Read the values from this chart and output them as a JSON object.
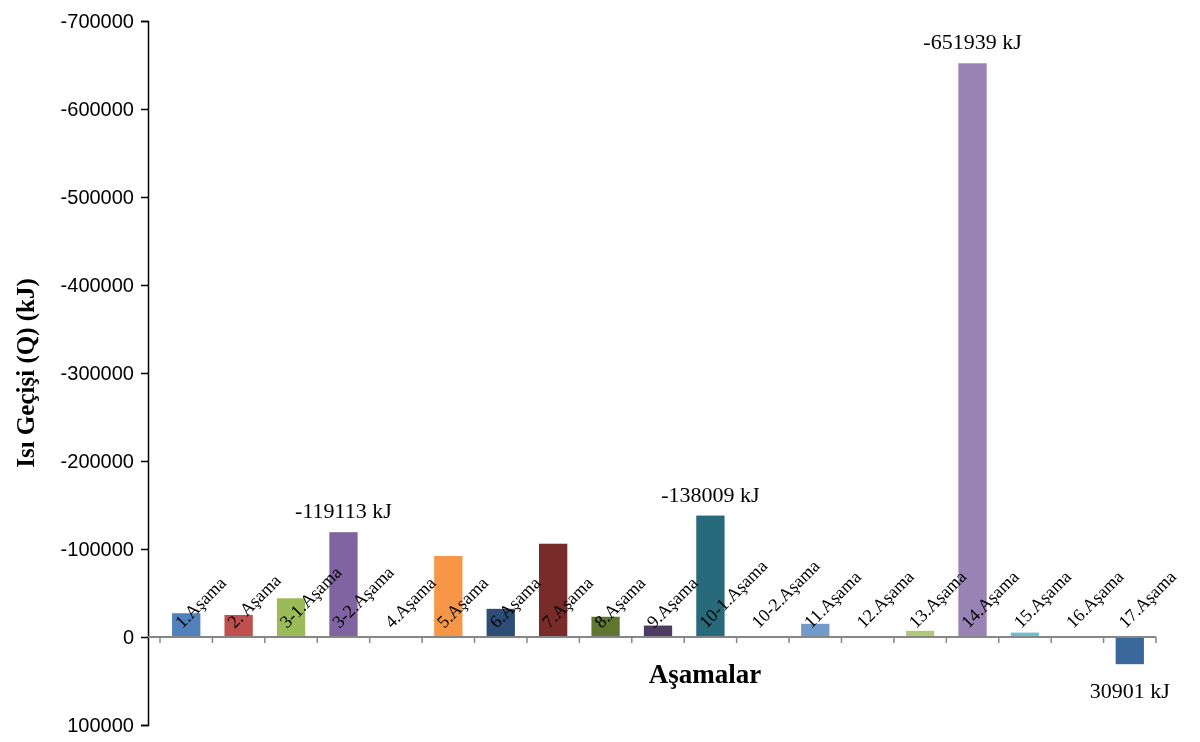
{
  "chart_data": {
    "type": "bar",
    "xlabel": "Aşamalar",
    "ylabel": "Isı Geçişi (Q) (kJ)",
    "categories": [
      "1.Aşama",
      "2. Aşama",
      "3-1.Aşama",
      "3-2.Aşama",
      "4.Aşama",
      "5.Aşama",
      "6.Aşama",
      "7.Aşama",
      "8.Aşama",
      "9.Aşama",
      "10-1.Aşama",
      "10-2.Aşama",
      "11.Aşama",
      "12.Aşama",
      "13.Aşama",
      "14.Aşama",
      "15.Aşama",
      "16.Aşama",
      "17.Aşama"
    ],
    "values": [
      -27000,
      -25000,
      -44000,
      -119113,
      null,
      -92000,
      -32000,
      -106000,
      -23000,
      -13000,
      -138009,
      null,
      -15000,
      null,
      -7000,
      -651939,
      -5000,
      null,
      30901
    ],
    "colors": [
      "#4f81bd",
      "#c0504d",
      "#9bbb59",
      "#8064a2",
      null,
      "#f79646",
      "#2c4d75",
      "#772c2a",
      "#5f7530",
      "#4d3b62",
      "#276a7c",
      null,
      "#729aca",
      null,
      "#afc97a",
      "#9983b5",
      "#6fbdd1",
      null,
      "#3a679c"
    ],
    "value_labels": [
      null,
      null,
      null,
      "-119113 kJ",
      null,
      null,
      null,
      null,
      null,
      null,
      "-138009 kJ",
      null,
      null,
      null,
      null,
      "-651939 kJ",
      null,
      null,
      "30901 kJ"
    ],
    "ylim": [
      100000,
      -700000
    ],
    "yticks": [
      -700000,
      -600000,
      -500000,
      -400000,
      -300000,
      -200000,
      -100000,
      0,
      100000
    ],
    "grid": false
  }
}
